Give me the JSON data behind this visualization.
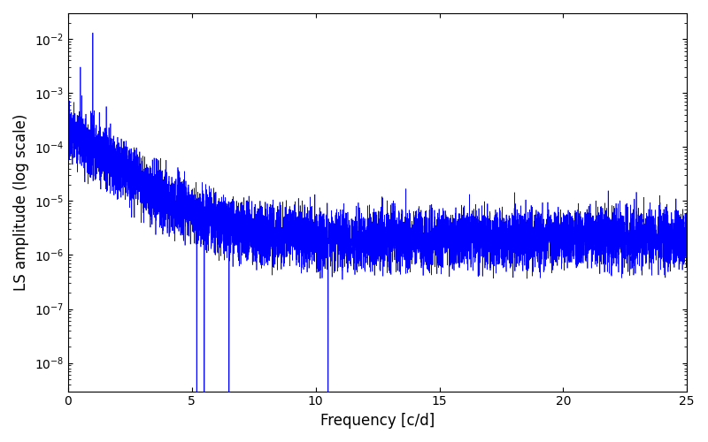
{
  "title": "",
  "xlabel": "Frequency [c/d]",
  "ylabel": "LS amplitude (log scale)",
  "line_color": "#0000ff",
  "line_width": 0.5,
  "xlim": [
    0,
    25
  ],
  "ylim": [
    3e-09,
    0.03
  ],
  "yscale": "log",
  "freq_min": 0.0,
  "freq_max": 25.0,
  "n_points": 8000,
  "seed": 7,
  "background_color": "#ffffff",
  "figsize": [
    8.0,
    5.0
  ],
  "dpi": 100
}
